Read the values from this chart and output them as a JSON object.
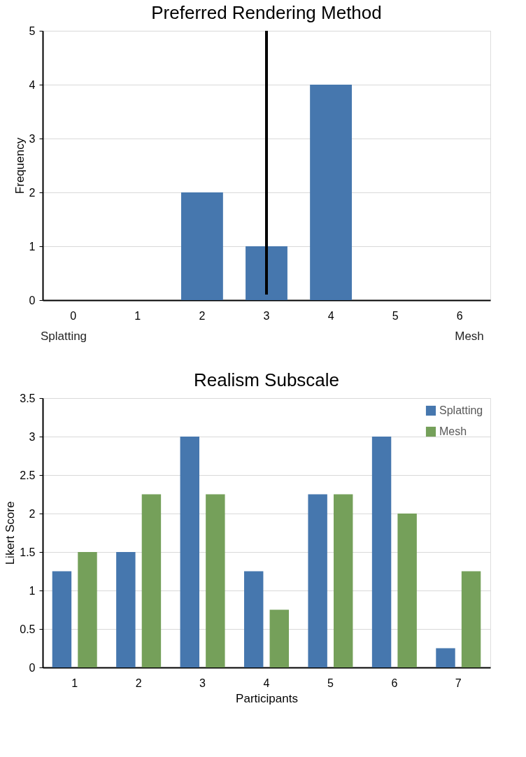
{
  "chart_data": [
    {
      "type": "bar",
      "title": "Preferred Rendering Method",
      "ylabel": "Frequency",
      "categories": [
        "0",
        "1",
        "2",
        "3",
        "4",
        "5",
        "6"
      ],
      "values": [
        0,
        0,
        2,
        1,
        4,
        0,
        0
      ],
      "color": "#4677ae",
      "ylim": [
        0,
        5
      ],
      "yticks": [
        0,
        1,
        2,
        3,
        4,
        5
      ],
      "grid": "y",
      "ref_lines": [
        {
          "axis": "x",
          "value": "3",
          "color": "#000000"
        }
      ],
      "annotations": [
        "Splatting",
        "Mesh"
      ]
    },
    {
      "type": "bar",
      "title": "Realism Subscale",
      "xlabel": "Participants",
      "ylabel": "Likert Score",
      "categories": [
        "1",
        "2",
        "3",
        "4",
        "5",
        "6",
        "7"
      ],
      "series": [
        {
          "name": "Splatting",
          "color": "#4677ae",
          "values": [
            1.25,
            1.5,
            3,
            1.25,
            2.25,
            3,
            0.25
          ]
        },
        {
          "name": "Mesh",
          "color": "#75a05a",
          "values": [
            1.5,
            2.25,
            2.25,
            0.75,
            2.25,
            2,
            1.25
          ]
        }
      ],
      "ylim": [
        0,
        3.5
      ],
      "yticks": [
        0,
        0.5,
        1,
        1.5,
        2,
        2.5,
        3,
        3.5
      ],
      "grid": "y",
      "legend": "top right"
    }
  ]
}
